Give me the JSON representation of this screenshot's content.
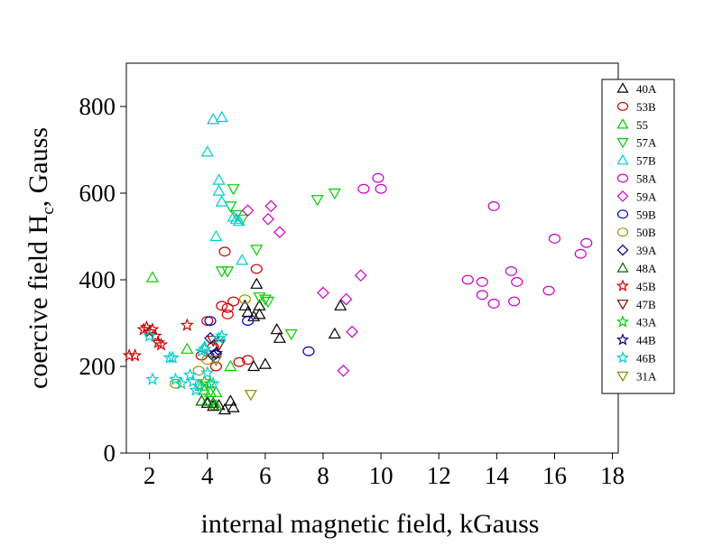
{
  "chart_data": {
    "type": "scatter",
    "title": "",
    "xlabel": "internal magnetic field, kGauss",
    "ylabel_main": "coercive field H",
    "ylabel_sub": "c",
    "ylabel_tail": ", Gauss",
    "ylabel": "coercive field H_c, Gauss",
    "xlim": [
      1.2,
      18.2
    ],
    "ylim": [
      0,
      900
    ],
    "x_ticks": [
      2,
      4,
      6,
      8,
      10,
      12,
      14,
      16,
      18
    ],
    "y_ticks": [
      0,
      200,
      400,
      600,
      800
    ],
    "grid": false,
    "legend_position": "right",
    "series": [
      {
        "name": "40A",
        "marker": "triangle-up",
        "color": "#000000",
        "points": [
          [
            4.0,
            115
          ],
          [
            4.2,
            108
          ],
          [
            4.4,
            110
          ],
          [
            4.6,
            100
          ],
          [
            4.8,
            120
          ],
          [
            4.9,
            105
          ],
          [
            5.3,
            340
          ],
          [
            5.4,
            325
          ],
          [
            5.6,
            315
          ],
          [
            5.7,
            390
          ],
          [
            5.8,
            340
          ],
          [
            5.8,
            320
          ],
          [
            5.6,
            200
          ],
          [
            6.0,
            205
          ],
          [
            6.4,
            285
          ],
          [
            6.5,
            265
          ],
          [
            8.4,
            275
          ],
          [
            8.6,
            340
          ]
        ]
      },
      {
        "name": "53B",
        "marker": "circle",
        "color": "#cc0000",
        "points": [
          [
            4.2,
            245
          ],
          [
            4.3,
            200
          ],
          [
            4.5,
            340
          ],
          [
            4.6,
            465
          ],
          [
            4.7,
            320
          ],
          [
            4.7,
            335
          ],
          [
            4.9,
            350
          ],
          [
            5.1,
            210
          ],
          [
            5.4,
            215
          ],
          [
            5.7,
            425
          ],
          [
            4.0,
            305
          ],
          [
            3.8,
            225
          ]
        ]
      },
      {
        "name": "55",
        "marker": "triangle-up",
        "color": "#00cc00",
        "points": [
          [
            2.1,
            405
          ],
          [
            3.3,
            240
          ],
          [
            3.8,
            155
          ],
          [
            3.9,
            145
          ],
          [
            4.0,
            120
          ],
          [
            4.1,
            140
          ],
          [
            4.3,
            110
          ],
          [
            4.3,
            140
          ],
          [
            4.8,
            200
          ]
        ]
      },
      {
        "name": "57A",
        "marker": "triangle-down",
        "color": "#00cc00",
        "points": [
          [
            4.5,
            420
          ],
          [
            4.7,
            420
          ],
          [
            4.8,
            570
          ],
          [
            4.9,
            610
          ],
          [
            5.0,
            550
          ],
          [
            5.2,
            540
          ],
          [
            5.7,
            470
          ],
          [
            5.8,
            360
          ],
          [
            6.0,
            355
          ],
          [
            6.1,
            350
          ],
          [
            6.9,
            275
          ],
          [
            7.8,
            585
          ],
          [
            8.4,
            600
          ]
        ]
      },
      {
        "name": "57B",
        "marker": "triangle-up",
        "color": "#00cccc",
        "points": [
          [
            4.0,
            695
          ],
          [
            4.2,
            770
          ],
          [
            4.3,
            500
          ],
          [
            4.4,
            630
          ],
          [
            4.4,
            605
          ],
          [
            4.5,
            775
          ],
          [
            4.5,
            580
          ],
          [
            4.9,
            545
          ],
          [
            5.0,
            540
          ],
          [
            5.1,
            535
          ],
          [
            5.2,
            445
          ],
          [
            3.9,
            245
          ]
        ]
      },
      {
        "name": "58A",
        "marker": "circle",
        "color": "#cc00cc",
        "points": [
          [
            9.4,
            610
          ],
          [
            9.9,
            635
          ],
          [
            10.0,
            610
          ],
          [
            13.0,
            400
          ],
          [
            13.5,
            395
          ],
          [
            13.5,
            365
          ],
          [
            13.9,
            345
          ],
          [
            13.9,
            570
          ],
          [
            14.5,
            420
          ],
          [
            14.6,
            350
          ],
          [
            14.7,
            395
          ],
          [
            15.8,
            375
          ],
          [
            16.0,
            495
          ],
          [
            16.9,
            460
          ],
          [
            17.1,
            485
          ]
        ]
      },
      {
        "name": "59A",
        "marker": "diamond",
        "color": "#cc00cc",
        "points": [
          [
            5.4,
            560
          ],
          [
            6.1,
            540
          ],
          [
            6.2,
            570
          ],
          [
            6.5,
            510
          ],
          [
            8.0,
            370
          ],
          [
            8.7,
            190
          ],
          [
            8.8,
            355
          ],
          [
            9.0,
            280
          ],
          [
            9.3,
            410
          ]
        ]
      },
      {
        "name": "59B",
        "marker": "circle",
        "color": "#0000cc",
        "points": [
          [
            4.1,
            305
          ],
          [
            5.4,
            305
          ],
          [
            7.5,
            235
          ]
        ]
      },
      {
        "name": "50B",
        "marker": "circle",
        "color": "#999900",
        "points": [
          [
            2.9,
            160
          ],
          [
            3.7,
            190
          ],
          [
            4.0,
            215
          ],
          [
            5.3,
            355
          ]
        ]
      },
      {
        "name": "39A",
        "marker": "diamond",
        "color": "#000088",
        "points": [
          [
            4.1,
            265
          ],
          [
            4.2,
            225
          ],
          [
            4.3,
            230
          ]
        ]
      },
      {
        "name": "48A",
        "marker": "triangle-up",
        "color": "#006600",
        "points": [
          [
            3.8,
            120
          ],
          [
            4.2,
            115
          ]
        ]
      },
      {
        "name": "45B",
        "marker": "star",
        "color": "#cc0000",
        "points": [
          [
            1.3,
            225
          ],
          [
            1.5,
            225
          ],
          [
            1.8,
            285
          ],
          [
            1.9,
            290
          ],
          [
            2.0,
            280
          ],
          [
            2.1,
            285
          ],
          [
            2.2,
            270
          ],
          [
            2.3,
            255
          ],
          [
            2.4,
            250
          ],
          [
            3.3,
            295
          ]
        ]
      },
      {
        "name": "47B",
        "marker": "triangle-down",
        "color": "#880000",
        "points": [
          [
            4.2,
            260
          ],
          [
            4.4,
            250
          ]
        ]
      },
      {
        "name": "43A",
        "marker": "star",
        "color": "#00cc00",
        "points": [
          [
            3.9,
            165
          ],
          [
            4.1,
            160
          ]
        ]
      },
      {
        "name": "44B",
        "marker": "star",
        "color": "#000088",
        "points": [
          [
            4.3,
            230
          ]
        ]
      },
      {
        "name": "46B",
        "marker": "star",
        "color": "#00cccc",
        "points": [
          [
            2.0,
            270
          ],
          [
            2.1,
            170
          ],
          [
            2.7,
            220
          ],
          [
            2.8,
            220
          ],
          [
            2.9,
            170
          ],
          [
            3.1,
            160
          ],
          [
            3.4,
            180
          ],
          [
            3.5,
            165
          ],
          [
            3.6,
            145
          ],
          [
            3.7,
            155
          ],
          [
            3.8,
            235
          ],
          [
            3.9,
            240
          ],
          [
            4.0,
            185
          ],
          [
            4.2,
            160
          ],
          [
            4.4,
            265
          ],
          [
            4.5,
            270
          ]
        ]
      },
      {
        "name": "31A",
        "marker": "triangle-down",
        "color": "#888800",
        "points": [
          [
            4.3,
            215
          ],
          [
            5.5,
            135
          ]
        ]
      }
    ]
  }
}
